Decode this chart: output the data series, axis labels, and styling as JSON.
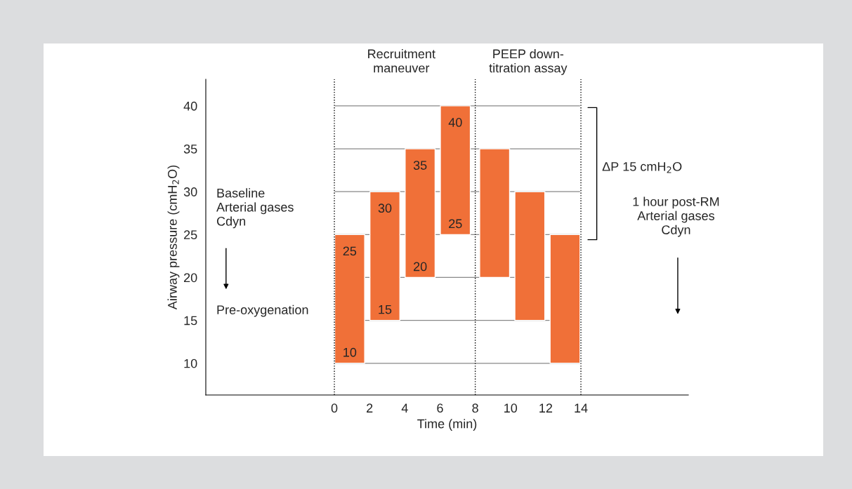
{
  "chart_data": {
    "type": "bar",
    "xlabel": "Time (min)",
    "ylabel": "Airway pressure (cmH$_{2}$O)",
    "x": [
      0.87,
      2.87,
      4.87,
      6.87,
      9.1,
      11.1,
      13.1
    ],
    "base": [
      10,
      15,
      20,
      25,
      20,
      15,
      10
    ],
    "values": [
      15,
      15,
      15,
      15,
      15,
      15,
      15
    ],
    "color": "#f07038",
    "xlim": [
      -7.3,
      20.1
    ],
    "ylim": [
      6.3,
      43.1
    ],
    "xticks": [
      0,
      2,
      4,
      6,
      8,
      10,
      12,
      14
    ],
    "yticks": [
      10,
      15,
      20,
      25,
      30,
      35,
      40
    ],
    "ref_lines": [
      {
        "axis": "y",
        "value": 10,
        "color": "#888888"
      },
      {
        "axis": "y",
        "value": 15,
        "color": "#888888"
      },
      {
        "axis": "y",
        "value": 20,
        "color": "#888888"
      },
      {
        "axis": "y",
        "value": 25,
        "color": "#888888"
      },
      {
        "axis": "y",
        "value": 30,
        "color": "#888888"
      },
      {
        "axis": "y",
        "value": 35,
        "color": "#888888"
      },
      {
        "axis": "y",
        "value": 40,
        "color": "#888888"
      },
      {
        "axis": "x",
        "value": 0,
        "line_style": "dotted",
        "color": "#000000"
      },
      {
        "axis": "x",
        "value": 8,
        "line_style": "dotted",
        "color": "#000000"
      },
      {
        "axis": "x",
        "value": 14,
        "line_style": "dotted",
        "color": "#000000"
      }
    ],
    "annotations": [
      "Recruitment\nmaneuver",
      "PEEP down-\ntitration assay",
      "Baseline\nArterial gases\nCdyn",
      "Pre-oxygenation",
      "1 hour post-RM\nArterial gases\nCdyn",
      "ΔP 15 cmH$_{2}$O",
      {
        "text": "25",
        "x": 0.87,
        "y": 25
      },
      {
        "text": "10",
        "x": 0.87,
        "y": 10
      },
      {
        "text": "30",
        "x": 2.87,
        "y": 30
      },
      {
        "text": "15",
        "x": 2.87,
        "y": 15
      },
      {
        "text": "35",
        "x": 4.87,
        "y": 35
      },
      {
        "text": "20",
        "x": 4.87,
        "y": 20
      },
      {
        "text": "40",
        "x": 6.87,
        "y": 40
      },
      {
        "text": "25",
        "x": 6.87,
        "y": 25
      }
    ]
  }
}
